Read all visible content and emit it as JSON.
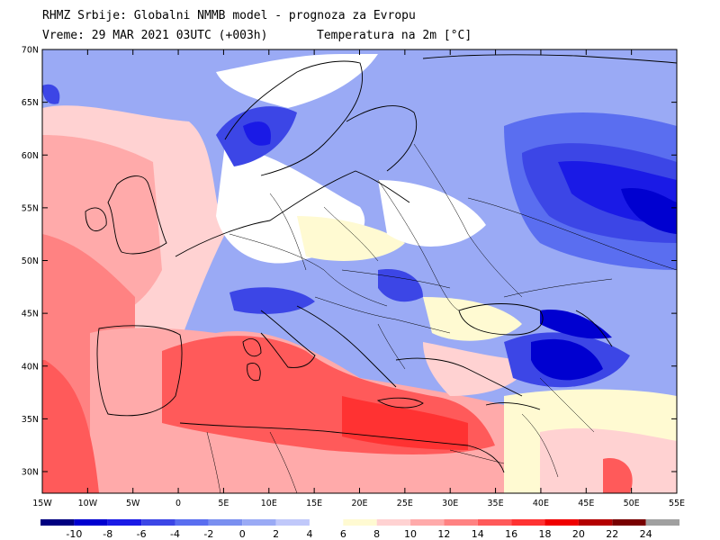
{
  "header": {
    "line1": "RHMZ Srbije: Globalni NMMB model - prognoza za Evropu",
    "line2": "Vreme: 29 MAR 2021 03UTC (+003h)",
    "line2_right": "Temperatura na 2m [°C]"
  },
  "map": {
    "lat_labels": [
      "70N",
      "65N",
      "60N",
      "55N",
      "50N",
      "45N",
      "40N",
      "35N",
      "30N"
    ],
    "lon_labels": [
      "15W",
      "10W",
      "5W",
      "0",
      "5E",
      "10E",
      "15E",
      "20E",
      "25E",
      "30E",
      "35E",
      "40E",
      "45E",
      "50E",
      "55E"
    ]
  },
  "colorbar": {
    "labels": [
      "-10",
      "-8",
      "-6",
      "-4",
      "-2",
      "0",
      "2",
      "4",
      "6",
      "8",
      "10",
      "12",
      "14",
      "16",
      "18",
      "20",
      "22",
      "24"
    ],
    "colors": [
      "#000080",
      "#0000d0",
      "#1a1ae6",
      "#3c46e6",
      "#5a6ef0",
      "#7a8ff0",
      "#9aaaf5",
      "#c0c8fa",
      "#ffffff",
      "#fffad2",
      "#ffd2d2",
      "#ffaaaa",
      "#ff8282",
      "#ff5a5a",
      "#ff3232",
      "#f00000",
      "#b40000",
      "#780000",
      "#a0a0a0"
    ]
  }
}
